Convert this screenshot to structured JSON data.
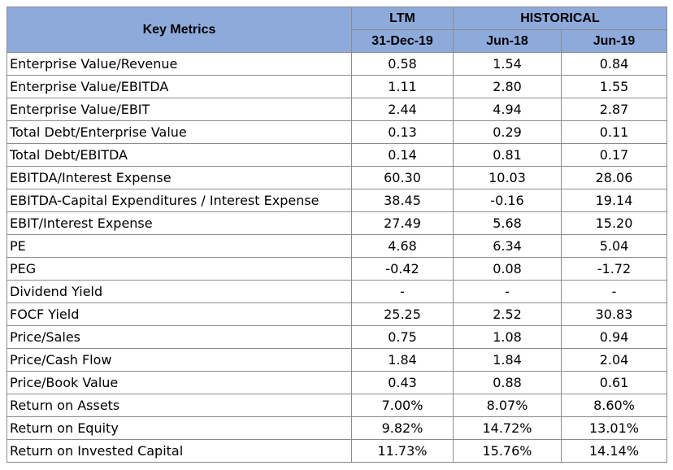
{
  "table": {
    "header": {
      "title": "Key Metrics",
      "group_ltm": "LTM",
      "group_historical": "HISTORICAL",
      "periods": [
        "31-Dec-19",
        "Jun-18",
        "Jun-19"
      ]
    },
    "rows": [
      {
        "label": "Enterprise Value/Revenue",
        "values": [
          "0.58",
          "1.54",
          "0.84"
        ]
      },
      {
        "label": "Enterprise Value/EBITDA",
        "values": [
          "1.11",
          "2.80",
          "1.55"
        ]
      },
      {
        "label": "Enterprise Value/EBIT",
        "values": [
          "2.44",
          "4.94",
          "2.87"
        ]
      },
      {
        "label": "Total Debt/Enterprise Value",
        "values": [
          "0.13",
          "0.29",
          "0.11"
        ]
      },
      {
        "label": "Total Debt/EBITDA",
        "values": [
          "0.14",
          "0.81",
          "0.17"
        ]
      },
      {
        "label": "EBITDA/Interest Expense",
        "values": [
          "60.30",
          "10.03",
          "28.06"
        ]
      },
      {
        "label": "EBITDA-Capital Expenditures / Interest Expense",
        "values": [
          "38.45",
          "-0.16",
          "19.14"
        ]
      },
      {
        "label": "EBIT/Interest Expense",
        "values": [
          "27.49",
          "5.68",
          "15.20"
        ]
      },
      {
        "label": "PE",
        "values": [
          "4.68",
          "6.34",
          "5.04"
        ]
      },
      {
        "label": "PEG",
        "values": [
          "-0.42",
          "0.08",
          "-1.72"
        ]
      },
      {
        "label": "Dividend Yield",
        "values": [
          "-",
          "-",
          "-"
        ]
      },
      {
        "label": "FOCF Yield",
        "values": [
          "25.25",
          "2.52",
          "30.83"
        ]
      },
      {
        "label": "Price/Sales",
        "values": [
          "0.75",
          "1.08",
          "0.94"
        ]
      },
      {
        "label": "Price/Cash Flow",
        "values": [
          "1.84",
          "1.84",
          "2.04"
        ]
      },
      {
        "label": "Price/Book Value",
        "values": [
          "0.43",
          "0.88",
          "0.61"
        ]
      },
      {
        "label": "Return on Assets",
        "values": [
          "7.00%",
          "8.07%",
          "8.60%"
        ]
      },
      {
        "label": "Return on Equity",
        "values": [
          "9.82%",
          "14.72%",
          "13.01%"
        ]
      },
      {
        "label": "Return on Invested Capital",
        "values": [
          "11.73%",
          "15.76%",
          "14.14%"
        ]
      }
    ]
  },
  "colors": {
    "header_bg": "#8eaadb",
    "grid_line": "#8c8c8c",
    "text": "#000000"
  }
}
